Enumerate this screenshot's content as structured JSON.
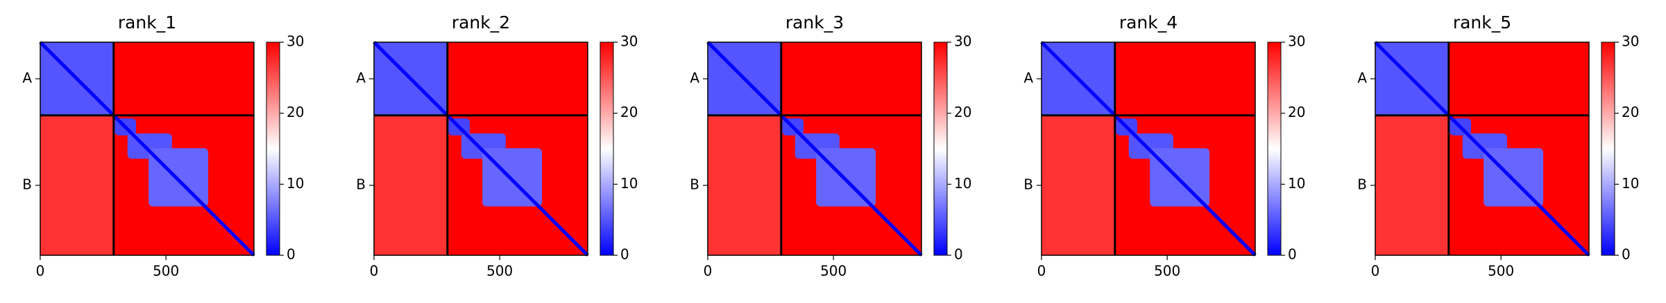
{
  "chart_data": [
    {
      "type": "heatmap",
      "title": "rank_1",
      "colormap": "bwr",
      "clim": [
        0,
        30
      ],
      "cticks": [
        0,
        10,
        20,
        30
      ],
      "xlim": [
        0,
        850
      ],
      "ylim": [
        850,
        0
      ],
      "xticks": [
        0,
        500
      ],
      "yticks": [
        {
          "value": 146,
          "label": "A"
        },
        {
          "value": 571,
          "label": "B"
        }
      ],
      "chain_breaks": [
        292
      ],
      "diagonal_value": 0,
      "regions": [
        {
          "x": [
            0,
            850
          ],
          "y": [
            0,
            850
          ],
          "value": 30
        },
        {
          "x": [
            0,
            292
          ],
          "y": [
            0,
            292
          ],
          "value": 5
        },
        {
          "x": [
            0,
            292
          ],
          "y": [
            292,
            850
          ],
          "value": 27
        },
        {
          "x": [
            296,
            381
          ],
          "y": [
            304,
            372
          ],
          "value": 4
        },
        {
          "x": [
            347,
            524
          ],
          "y": [
            364,
            465
          ],
          "value": 5
        },
        {
          "x": [
            431,
            668
          ],
          "y": [
            423,
            655
          ],
          "value": 6
        }
      ]
    },
    {
      "type": "heatmap",
      "title": "rank_2",
      "colormap": "bwr",
      "clim": [
        0,
        30
      ],
      "cticks": [
        0,
        10,
        20,
        30
      ],
      "xlim": [
        0,
        850
      ],
      "ylim": [
        850,
        0
      ],
      "xticks": [
        0,
        500
      ],
      "yticks": [
        {
          "value": 146,
          "label": "A"
        },
        {
          "value": 571,
          "label": "B"
        }
      ],
      "chain_breaks": [
        292
      ],
      "diagonal_value": 0,
      "regions": [
        {
          "x": [
            0,
            850
          ],
          "y": [
            0,
            850
          ],
          "value": 30
        },
        {
          "x": [
            0,
            292
          ],
          "y": [
            0,
            292
          ],
          "value": 5
        },
        {
          "x": [
            0,
            292
          ],
          "y": [
            292,
            850
          ],
          "value": 27
        },
        {
          "x": [
            296,
            381
          ],
          "y": [
            304,
            372
          ],
          "value": 4
        },
        {
          "x": [
            347,
            524
          ],
          "y": [
            364,
            465
          ],
          "value": 5
        },
        {
          "x": [
            431,
            668
          ],
          "y": [
            423,
            655
          ],
          "value": 6
        }
      ]
    },
    {
      "type": "heatmap",
      "title": "rank_3",
      "colormap": "bwr",
      "clim": [
        0,
        30
      ],
      "cticks": [
        0,
        10,
        20,
        30
      ],
      "xlim": [
        0,
        850
      ],
      "ylim": [
        850,
        0
      ],
      "xticks": [
        0,
        500
      ],
      "yticks": [
        {
          "value": 146,
          "label": "A"
        },
        {
          "value": 571,
          "label": "B"
        }
      ],
      "chain_breaks": [
        292
      ],
      "diagonal_value": 0,
      "regions": [
        {
          "x": [
            0,
            850
          ],
          "y": [
            0,
            850
          ],
          "value": 30
        },
        {
          "x": [
            0,
            292
          ],
          "y": [
            0,
            292
          ],
          "value": 5
        },
        {
          "x": [
            0,
            292
          ],
          "y": [
            292,
            850
          ],
          "value": 27
        },
        {
          "x": [
            296,
            381
          ],
          "y": [
            304,
            372
          ],
          "value": 4
        },
        {
          "x": [
            347,
            524
          ],
          "y": [
            364,
            465
          ],
          "value": 5
        },
        {
          "x": [
            431,
            668
          ],
          "y": [
            423,
            655
          ],
          "value": 6
        }
      ]
    },
    {
      "type": "heatmap",
      "title": "rank_4",
      "colormap": "bwr",
      "clim": [
        0,
        30
      ],
      "cticks": [
        0,
        10,
        20,
        30
      ],
      "xlim": [
        0,
        850
      ],
      "ylim": [
        850,
        0
      ],
      "xticks": [
        0,
        500
      ],
      "yticks": [
        {
          "value": 146,
          "label": "A"
        },
        {
          "value": 571,
          "label": "B"
        }
      ],
      "chain_breaks": [
        292
      ],
      "diagonal_value": 0,
      "regions": [
        {
          "x": [
            0,
            850
          ],
          "y": [
            0,
            850
          ],
          "value": 30
        },
        {
          "x": [
            0,
            292
          ],
          "y": [
            0,
            292
          ],
          "value": 5
        },
        {
          "x": [
            0,
            292
          ],
          "y": [
            292,
            850
          ],
          "value": 27
        },
        {
          "x": [
            296,
            381
          ],
          "y": [
            304,
            372
          ],
          "value": 4
        },
        {
          "x": [
            347,
            524
          ],
          "y": [
            364,
            465
          ],
          "value": 5
        },
        {
          "x": [
            431,
            668
          ],
          "y": [
            423,
            655
          ],
          "value": 6
        }
      ]
    },
    {
      "type": "heatmap",
      "title": "rank_5",
      "colormap": "bwr",
      "clim": [
        0,
        30
      ],
      "cticks": [
        0,
        10,
        20,
        30
      ],
      "xlim": [
        0,
        850
      ],
      "ylim": [
        850,
        0
      ],
      "xticks": [
        0,
        500
      ],
      "yticks": [
        {
          "value": 146,
          "label": "A"
        },
        {
          "value": 571,
          "label": "B"
        }
      ],
      "chain_breaks": [
        292
      ],
      "diagonal_value": 0,
      "regions": [
        {
          "x": [
            0,
            850
          ],
          "y": [
            0,
            850
          ],
          "value": 30
        },
        {
          "x": [
            0,
            292
          ],
          "y": [
            0,
            292
          ],
          "value": 5
        },
        {
          "x": [
            0,
            292
          ],
          "y": [
            292,
            850
          ],
          "value": 27
        },
        {
          "x": [
            296,
            381
          ],
          "y": [
            304,
            372
          ],
          "value": 4
        },
        {
          "x": [
            347,
            524
          ],
          "y": [
            364,
            465
          ],
          "value": 5
        },
        {
          "x": [
            431,
            668
          ],
          "y": [
            423,
            655
          ],
          "value": 6
        }
      ]
    }
  ]
}
